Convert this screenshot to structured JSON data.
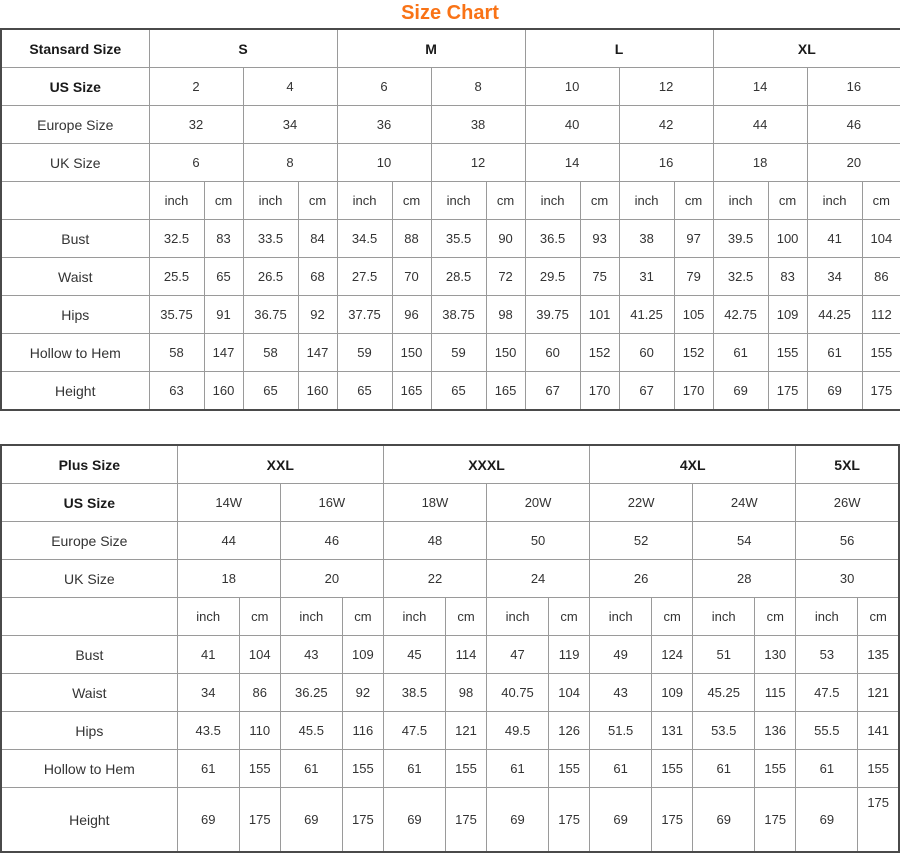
{
  "title": "Size Chart",
  "accent_color": "#f97316",
  "chart_data": [
    {
      "type": "table",
      "corner_label": "Stansard Size",
      "unit_headers": [
        "inch",
        "cm"
      ],
      "size_groups": [
        {
          "label": "S",
          "pairs": 2
        },
        {
          "label": "M",
          "pairs": 2
        },
        {
          "label": "L",
          "pairs": 2
        },
        {
          "label": "XL",
          "pairs": 2
        }
      ],
      "size_rows": [
        {
          "label": "US Size",
          "bold": true,
          "values": [
            "2",
            "4",
            "6",
            "8",
            "10",
            "12",
            "14",
            "16"
          ]
        },
        {
          "label": "Europe Size",
          "bold": false,
          "values": [
            "32",
            "34",
            "36",
            "38",
            "40",
            "42",
            "44",
            "46"
          ]
        },
        {
          "label": "UK Size",
          "bold": false,
          "values": [
            "6",
            "8",
            "10",
            "12",
            "14",
            "16",
            "18",
            "20"
          ]
        }
      ],
      "measure_rows": [
        {
          "label": "Bust",
          "values": [
            "32.5",
            "83",
            "33.5",
            "84",
            "34.5",
            "88",
            "35.5",
            "90",
            "36.5",
            "93",
            "38",
            "97",
            "39.5",
            "100",
            "41",
            "104"
          ]
        },
        {
          "label": "Waist",
          "values": [
            "25.5",
            "65",
            "26.5",
            "68",
            "27.5",
            "70",
            "28.5",
            "72",
            "29.5",
            "75",
            "31",
            "79",
            "32.5",
            "83",
            "34",
            "86"
          ]
        },
        {
          "label": "Hips",
          "values": [
            "35.75",
            "91",
            "36.75",
            "92",
            "37.75",
            "96",
            "38.75",
            "98",
            "39.75",
            "101",
            "41.25",
            "105",
            "42.75",
            "109",
            "44.25",
            "112"
          ]
        },
        {
          "label": "Hollow to Hem",
          "values": [
            "58",
            "147",
            "58",
            "147",
            "59",
            "150",
            "59",
            "150",
            "60",
            "152",
            "60",
            "152",
            "61",
            "155",
            "61",
            "155"
          ]
        },
        {
          "label": "Height",
          "values": [
            "63",
            "160",
            "65",
            "160",
            "65",
            "165",
            "65",
            "165",
            "67",
            "170",
            "67",
            "170",
            "69",
            "175",
            "69",
            "175"
          ]
        }
      ]
    },
    {
      "type": "table",
      "corner_label": "Plus Size",
      "unit_headers": [
        "inch",
        "cm"
      ],
      "size_groups": [
        {
          "label": "XXL",
          "pairs": 2
        },
        {
          "label": "XXXL",
          "pairs": 2
        },
        {
          "label": "4XL",
          "pairs": 2
        },
        {
          "label": "5XL",
          "pairs": 1
        }
      ],
      "size_rows": [
        {
          "label": "US Size",
          "bold": true,
          "values": [
            "14W",
            "16W",
            "18W",
            "20W",
            "22W",
            "24W",
            "26W"
          ]
        },
        {
          "label": "Europe Size",
          "bold": false,
          "values": [
            "44",
            "46",
            "48",
            "50",
            "52",
            "54",
            "56"
          ]
        },
        {
          "label": "UK Size",
          "bold": false,
          "values": [
            "18",
            "20",
            "22",
            "24",
            "26",
            "28",
            "30"
          ]
        }
      ],
      "measure_rows": [
        {
          "label": "Bust",
          "values": [
            "41",
            "104",
            "43",
            "109",
            "45",
            "114",
            "47",
            "119",
            "49",
            "124",
            "51",
            "130",
            "53",
            "135"
          ]
        },
        {
          "label": "Waist",
          "values": [
            "34",
            "86",
            "36.25",
            "92",
            "38.5",
            "98",
            "40.75",
            "104",
            "43",
            "109",
            "45.25",
            "115",
            "47.5",
            "121"
          ]
        },
        {
          "label": "Hips",
          "values": [
            "43.5",
            "110",
            "45.5",
            "116",
            "47.5",
            "121",
            "49.5",
            "126",
            "51.5",
            "131",
            "53.5",
            "136",
            "55.5",
            "141"
          ]
        },
        {
          "label": "Hollow to Hem",
          "values": [
            "61",
            "155",
            "61",
            "155",
            "61",
            "155",
            "61",
            "155",
            "61",
            "155",
            "61",
            "155",
            "61",
            "155"
          ]
        },
        {
          "label": "Height",
          "values": [
            "69",
            "175",
            "69",
            "175",
            "69",
            "175",
            "69",
            "175",
            "69",
            "175",
            "69",
            "175",
            "69",
            "175"
          ]
        }
      ]
    }
  ]
}
